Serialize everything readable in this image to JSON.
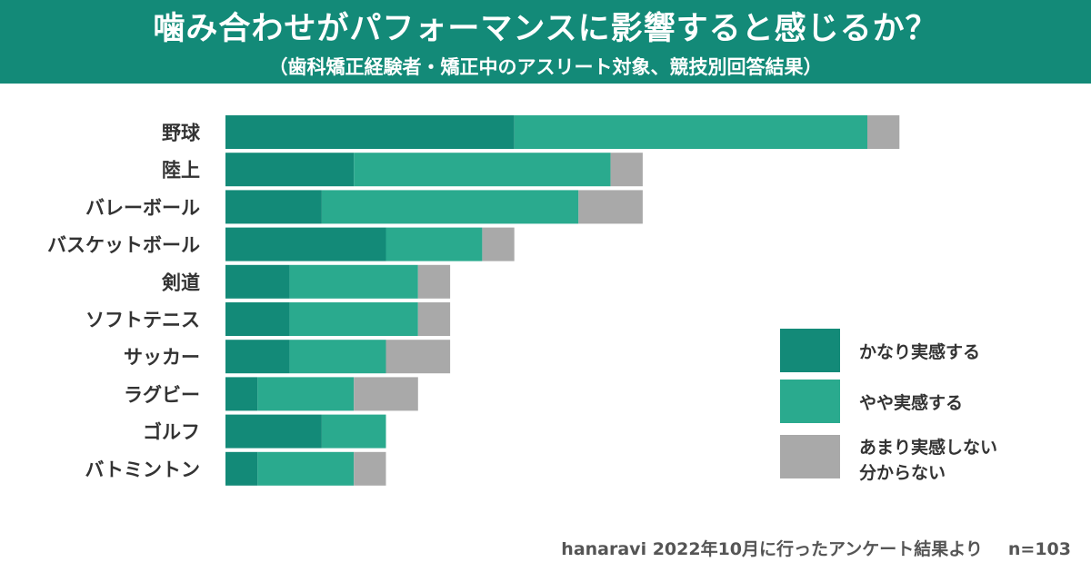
{
  "header": {
    "title": "噛み合わせがパフォーマンスに影響すると感じるか？",
    "subtitle": "（歯科矯正経験者・矯正中のアスリート対象、競技別回答結果）"
  },
  "colors": {
    "header_bg": "#138a78",
    "strong": "#138a78",
    "somewhat": "#2aaa8e",
    "none": "#a9a9a9"
  },
  "chart_data": {
    "type": "bar",
    "orientation": "horizontal",
    "stacked": true,
    "title": "噛み合わせがパフォーマンスに影響すると感じるか？",
    "subtitle": "（歯科矯正経験者・矯正中のアスリート対象、競技別回答結果）",
    "categories": [
      "野球",
      "陸上",
      "バレーボール",
      "バスケットボール",
      "剣道",
      "ソフトテニス",
      "サッカー",
      "ラグビー",
      "ゴルフ",
      "バトミントン"
    ],
    "series": [
      {
        "name": "かなり実感する",
        "values": [
          9,
          4,
          3,
          5,
          2,
          2,
          2,
          1,
          3,
          1
        ]
      },
      {
        "name": "やや実感する",
        "values": [
          11,
          8,
          8,
          3,
          4,
          4,
          3,
          3,
          2,
          3
        ]
      },
      {
        "name": "あまり実感しない\n分からない",
        "values": [
          1,
          1,
          2,
          1,
          1,
          1,
          2,
          2,
          0,
          1
        ]
      }
    ],
    "legend": {
      "position": "right",
      "entries": [
        "かなり実感する",
        "やや実感する",
        "あまり実感しない",
        "分からない"
      ]
    },
    "grid": false,
    "xlabel": "",
    "ylabel": ""
  },
  "footer": {
    "source": "hanaravi 2022年10月に行ったアンケート結果より",
    "n": "n=103"
  }
}
